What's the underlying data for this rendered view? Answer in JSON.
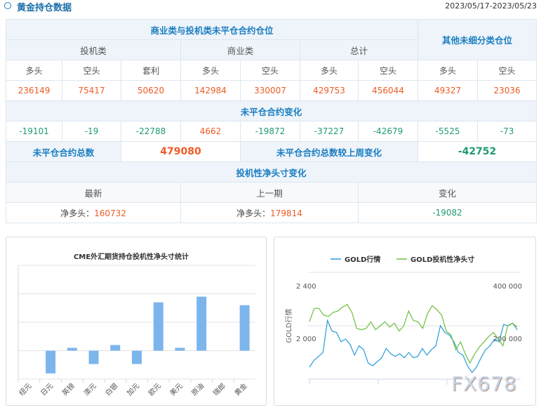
{
  "header": {
    "title": "黄金持仓数据",
    "date_range": "2023/05/17-2023/05/23"
  },
  "table": {
    "group_title": "商业类与投机类未平仓合约仓位",
    "other_title": "其他未细分类仓位",
    "categories": [
      "投机类",
      "商业类",
      "总计"
    ],
    "sub_headers": [
      "多头",
      "空头",
      "套利",
      "多头",
      "空头",
      "多头",
      "空头",
      "多头",
      "空头"
    ],
    "positions": [
      "236149",
      "75417",
      "50620",
      "142984",
      "330007",
      "429753",
      "456044",
      "49327",
      "23036"
    ],
    "change_title": "未平仓合约变化",
    "changes": [
      "-19101",
      "-19",
      "-22788",
      "4662",
      "-19872",
      "-37227",
      "-42679",
      "-5525",
      "-73"
    ],
    "total_label": "未平仓合约总数",
    "total_value": "479080",
    "total_change_label": "未平仓合约总数较上周变化",
    "total_change_value": "-42752",
    "net_title": "投机性净头寸变化",
    "net_headers": [
      "最新",
      "上一期",
      "变化"
    ],
    "net_prefix": "净多头：",
    "net_latest": "160732",
    "net_prev": "179814",
    "net_change": "-19082"
  },
  "chart_data": [
    {
      "type": "bar",
      "title": "CME外汇期货持仓投机性净头寸统计",
      "categories": [
        "纽元",
        "日元",
        "英镑",
        "澳元",
        "白银",
        "加元",
        "欧元",
        "美元",
        "原油",
        "瑞郎",
        "黄金"
      ],
      "values": [
        0,
        -0.8,
        0.1,
        -0.47,
        0.2,
        -0.47,
        1.7,
        0.1,
        1.9,
        0,
        1.6
      ],
      "ylim": [
        -1,
        3
      ],
      "grid": true,
      "xlabel": "",
      "ylabel": ""
    },
    {
      "type": "line",
      "legend": [
        "GOLD行情",
        "GOLD投机性净头寸"
      ],
      "legend_position": "top",
      "ylabel": "GOLD行情",
      "left_ticks": [
        "2 000",
        "2 400"
      ],
      "right_ticks": [
        "200 000",
        "400 000"
      ],
      "left_range": [
        1600,
        2400
      ],
      "right_range": [
        0,
        400000
      ],
      "series": [
        {
          "name": "GOLD行情",
          "color": "#2a9bd6",
          "values": [
            1690,
            1740,
            1770,
            1800,
            2040,
            1960,
            1950,
            1880,
            1900,
            1860,
            1780,
            1850,
            1820,
            1720,
            1700,
            1730,
            1760,
            1830,
            1790,
            1770,
            1790,
            1760,
            1800,
            1760,
            1770,
            1830,
            1780,
            1820,
            1850,
            2000,
            1950,
            1930,
            1880,
            1800,
            1780,
            1700,
            1650,
            1690,
            1760,
            1820,
            1850,
            1900,
            1880,
            2010,
            2000,
            2020,
            1970
          ]
        },
        {
          "name": "GOLD投机性净头寸",
          "color": "#6cbf3c",
          "values": [
            215000,
            265000,
            265000,
            240000,
            235000,
            250000,
            255000,
            270000,
            280000,
            250000,
            190000,
            185000,
            190000,
            215000,
            185000,
            200000,
            215000,
            195000,
            210000,
            180000,
            200000,
            255000,
            220000,
            215000,
            190000,
            245000,
            275000,
            260000,
            240000,
            180000,
            165000,
            110000,
            140000,
            95000,
            60000,
            95000,
            120000,
            140000,
            160000,
            175000,
            150000,
            125000,
            200000,
            210000,
            195000
          ]
        }
      ]
    }
  ],
  "watermark": "FX678",
  "colors": {
    "accent": "#1a7dc0",
    "up": "#f05a24",
    "down": "#1f9a72"
  }
}
